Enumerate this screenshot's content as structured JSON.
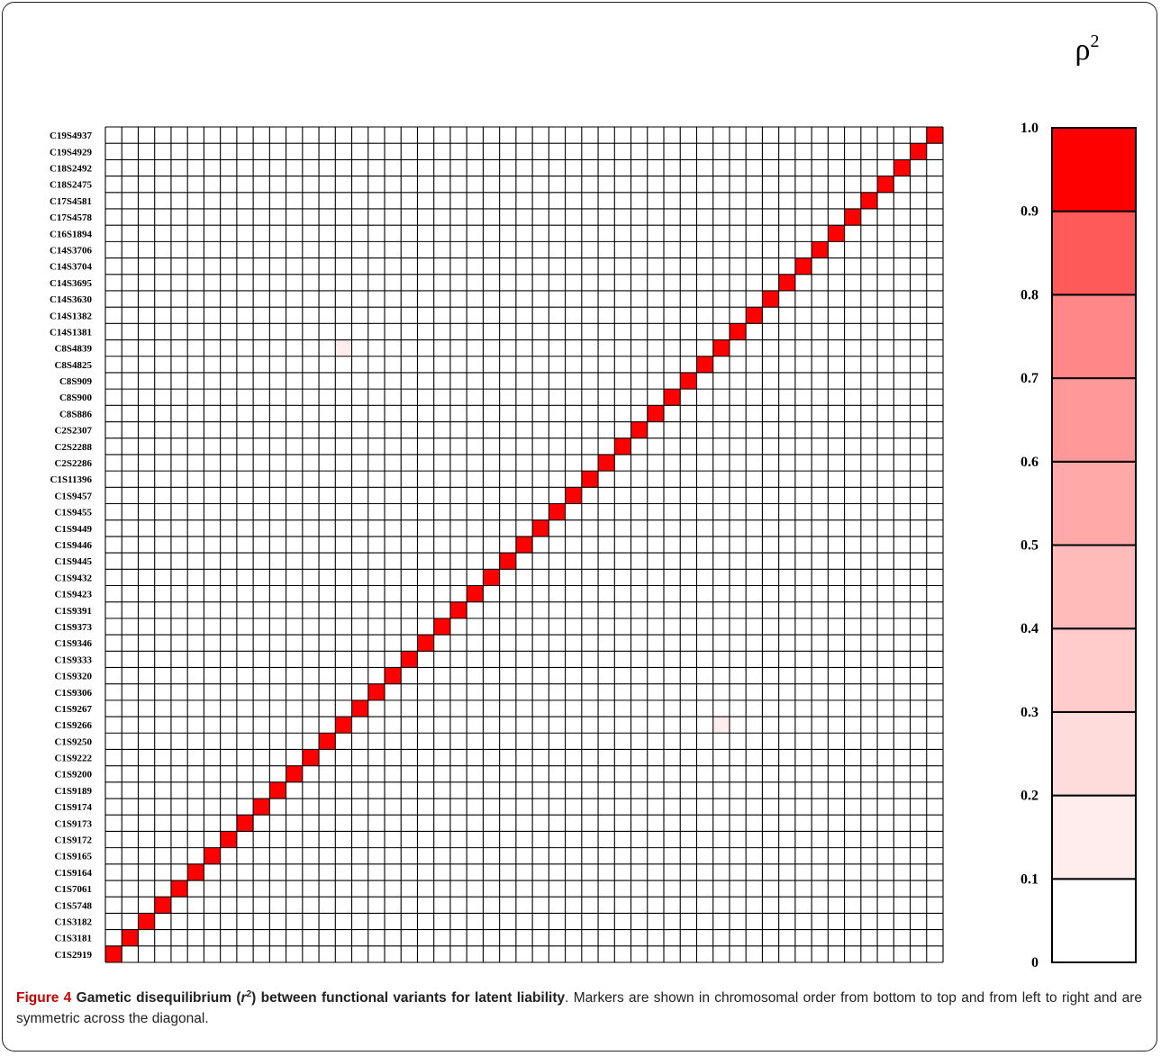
{
  "chart_data": {
    "type": "heatmap",
    "markers": [
      "C1S2919",
      "C1S3181",
      "C1S3182",
      "C1S5748",
      "C1S7061",
      "C1S9164",
      "C1S9165",
      "C1S9172",
      "C1S9173",
      "C1S9174",
      "C1S9189",
      "C1S9200",
      "C1S9222",
      "C1S9250",
      "C1S9266",
      "C1S9267",
      "C1S9306",
      "C1S9320",
      "C1S9333",
      "C1S9346",
      "C1S9373",
      "C1S9391",
      "C1S9423",
      "C1S9432",
      "C1S9445",
      "C1S9446",
      "C1S9449",
      "C1S9455",
      "C1S9457",
      "C1S11396",
      "C2S2286",
      "C2S2288",
      "C2S2307",
      "C8S886",
      "C8S900",
      "C8S909",
      "C8S4825",
      "C8S4839",
      "C14S1381",
      "C14S1382",
      "C14S3630",
      "C14S3695",
      "C14S3704",
      "C14S3706",
      "C16S1894",
      "C17S4578",
      "C17S4581",
      "C18S2475",
      "C18S2492",
      "C19S4929",
      "C19S4937"
    ],
    "marker_order": "bottom-to-top and left-to-right",
    "diagonal_value": 1.0,
    "off_diagonal_cells": [
      {
        "row_marker": "C8S4839",
        "col_marker": "C1S9266",
        "value": 0.15
      },
      {
        "row_marker": "C1S9266",
        "col_marker": "C8S4839",
        "value": 0.15
      }
    ],
    "other_values": 0,
    "legend": {
      "title": "ρ",
      "title_sup": "2",
      "ticks": [
        "0",
        "0.1",
        "0.2",
        "0.3",
        "0.4",
        "0.5",
        "0.6",
        "0.7",
        "0.8",
        "0.9",
        "1.0"
      ],
      "bins": [
        {
          "from": 0.0,
          "to": 0.1,
          "color": "#ffffff"
        },
        {
          "from": 0.1,
          "to": 0.2,
          "color": "#ffeded"
        },
        {
          "from": 0.2,
          "to": 0.3,
          "color": "#ffdcdc"
        },
        {
          "from": 0.3,
          "to": 0.4,
          "color": "#ffcbcb"
        },
        {
          "from": 0.4,
          "to": 0.5,
          "color": "#ffbaba"
        },
        {
          "from": 0.5,
          "to": 0.6,
          "color": "#ffa9a9"
        },
        {
          "from": 0.6,
          "to": 0.7,
          "color": "#ff9898"
        },
        {
          "from": 0.7,
          "to": 0.8,
          "color": "#ff8787"
        },
        {
          "from": 0.8,
          "to": 0.9,
          "color": "#ff5a5a"
        },
        {
          "from": 0.9,
          "to": 1.0,
          "color": "#ff0000"
        }
      ]
    }
  },
  "caption": {
    "figure_label": "Figure 4",
    "title_before": "Gametic disequilibrium (",
    "title_var": "r",
    "title_sup": "2",
    "title_after": ") between functional variants for latent liability",
    "text": ". Markers are shown in chromosomal order from bottom to top and from left to right and are symmetric across the diagonal."
  },
  "colors": {
    "diagonal": "#ff0000",
    "grid_line": "#000000",
    "caption_accent": "#cc0000"
  }
}
